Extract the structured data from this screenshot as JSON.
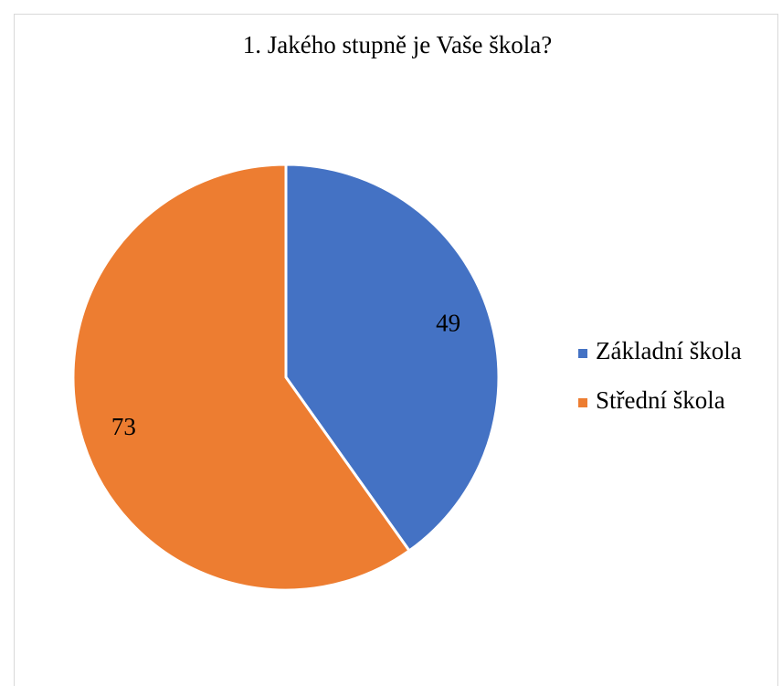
{
  "chart_data": {
    "type": "pie",
    "title": "1. Jakého stupně je Vaše škola?",
    "categories": [
      "Základní škola",
      "Střední škola"
    ],
    "values": [
      49,
      73
    ],
    "colors": [
      "#4472c4",
      "#ed7d31"
    ],
    "legend": "right"
  }
}
